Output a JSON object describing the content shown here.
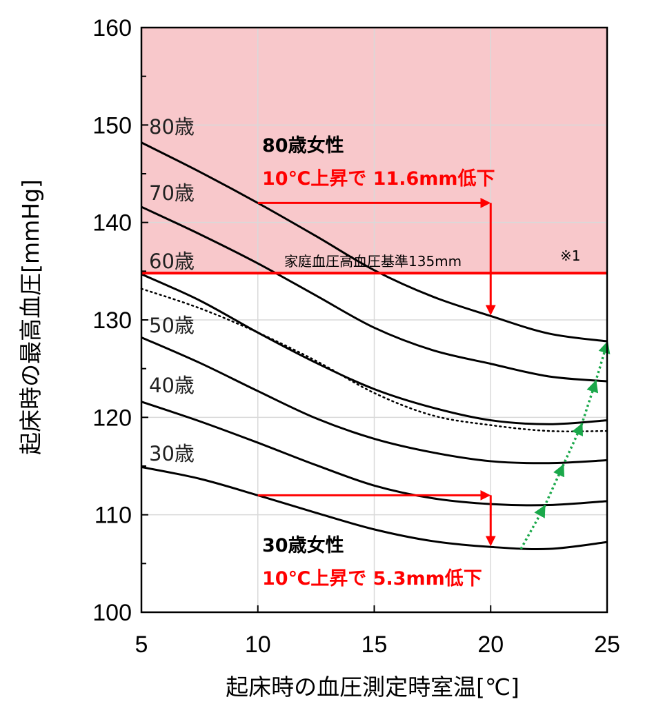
{
  "chart_data": {
    "type": "line",
    "title": "",
    "xlabel": "起床時の血圧測定時室温[℃]",
    "ylabel": "起床時の最高血圧[mmHg]",
    "xlim": [
      5,
      25
    ],
    "ylim": [
      100,
      160
    ],
    "x_ticks": [
      "5",
      "10",
      "15",
      "20",
      "25"
    ],
    "y_ticks": [
      "100",
      "110",
      "120",
      "130",
      "140",
      "150",
      "160"
    ],
    "grid": true,
    "colors": {
      "curve": "#000000",
      "threshold": "#ff0000",
      "arrow": "#ff0000",
      "green": "#1aa84a",
      "shade": "#f8c8cb",
      "grid": "#d9d9d9"
    },
    "x": [
      5,
      7.5,
      10,
      12.5,
      15,
      17.5,
      20,
      22.5,
      25
    ],
    "series": [
      {
        "name": "80歳",
        "style": "solid",
        "values": [
          148.2,
          145.2,
          142.0,
          138.6,
          135.1,
          132.4,
          130.4,
          128.6,
          127.8
        ]
      },
      {
        "name": "70歳",
        "style": "solid",
        "values": [
          141.6,
          138.8,
          135.8,
          132.5,
          129.2,
          126.9,
          125.5,
          124.2,
          123.7
        ]
      },
      {
        "name": "60歳",
        "style": "solid",
        "values": [
          134.7,
          132.0,
          128.7,
          125.6,
          122.9,
          121.0,
          119.7,
          119.3,
          119.7
        ]
      },
      {
        "name": "",
        "style": "dotted",
        "values": [
          133.2,
          131.2,
          128.7,
          125.8,
          122.5,
          120.2,
          119.2,
          118.6,
          118.6
        ]
      },
      {
        "name": "50歳",
        "style": "solid",
        "values": [
          128.2,
          125.6,
          122.7,
          119.9,
          117.8,
          116.4,
          115.5,
          115.3,
          115.6
        ]
      },
      {
        "name": "40歳",
        "style": "solid",
        "values": [
          121.6,
          119.6,
          117.4,
          115.1,
          113.0,
          111.7,
          111.1,
          111.0,
          111.4
        ]
      },
      {
        "name": "30歳",
        "style": "solid",
        "values": [
          114.9,
          113.7,
          112.0,
          110.2,
          108.5,
          107.3,
          106.7,
          106.5,
          107.2
        ]
      }
    ],
    "age_labels": [
      "80歳",
      "70歳",
      "60歳",
      "50歳",
      "40歳",
      "30歳"
    ],
    "threshold": {
      "y": 134.8,
      "label": "家庭血圧高血圧基準135mm",
      "note": "※1"
    },
    "annotations": [
      {
        "title": "80歳女性",
        "detail": "10℃上昇で 11.6mm低下",
        "arrow_from": [
          10,
          142.0
        ],
        "arrow_to": [
          20,
          142.0
        ],
        "drop_to": 130.4
      },
      {
        "title": "30歳女性",
        "detail": "10℃上昇で 5.3mm低下",
        "arrow_from": [
          10,
          112.0
        ],
        "arrow_to": [
          20,
          112.0
        ],
        "drop_to": 106.7
      }
    ],
    "trend_points": [
      [
        21.3,
        106.5
      ],
      [
        22.3,
        110.8
      ],
      [
        23.1,
        115.0
      ],
      [
        23.9,
        119.2
      ],
      [
        24.5,
        123.6
      ],
      [
        25.0,
        127.6
      ]
    ]
  }
}
